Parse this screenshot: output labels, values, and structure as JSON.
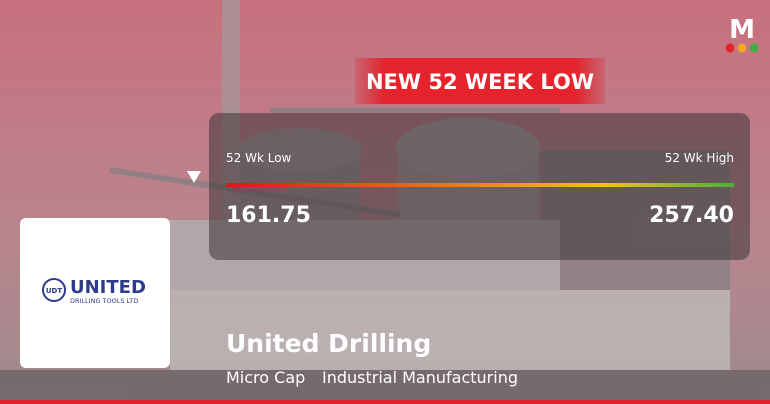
{
  "brand": {
    "logo": "M"
  },
  "badge": "NEW 52 WEEK LOW",
  "range": {
    "low_label": "52 Wk Low",
    "high_label": "52 Wk High",
    "low_value": "161.75",
    "high_value": "257.40"
  },
  "company_logo": {
    "emblem": "UDT",
    "name": "UNITED",
    "subtitle": "DRILLING TOOLS LTD"
  },
  "company": {
    "name": "United Drilling",
    "tags": [
      "Micro Cap",
      "Industrial Manufacturing"
    ]
  }
}
